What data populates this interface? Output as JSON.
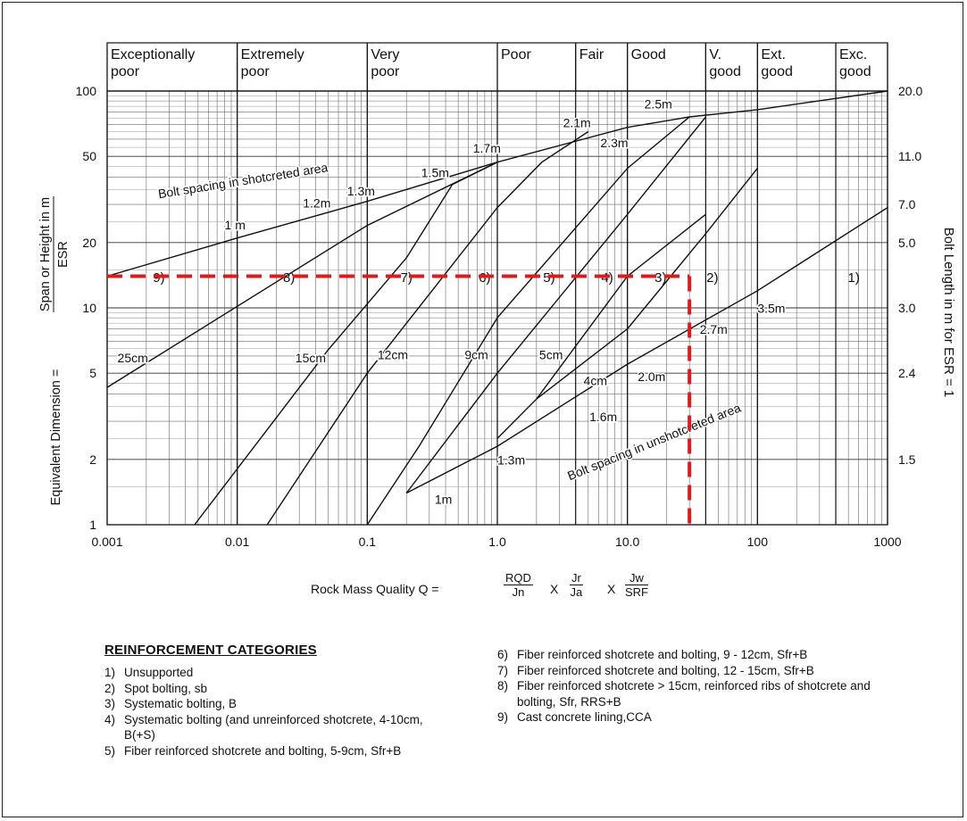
{
  "chart_data": {
    "type": "line",
    "xscale": "log",
    "yscale": "log",
    "xlim": [
      0.001,
      1000
    ],
    "ylim": [
      1,
      100
    ],
    "x_ticks": [
      {
        "value": 0.001,
        "label": "0.001"
      },
      {
        "value": 0.01,
        "label": "0.01"
      },
      {
        "value": 0.1,
        "label": "0.1"
      },
      {
        "value": 1,
        "label": "1.0"
      },
      {
        "value": 10,
        "label": "10.0"
      },
      {
        "value": 100,
        "label": "100"
      },
      {
        "value": 1000,
        "label": "1000"
      }
    ],
    "y_ticks": [
      {
        "value": 1,
        "label": "1"
      },
      {
        "value": 2,
        "label": "2"
      },
      {
        "value": 5,
        "label": "5"
      },
      {
        "value": 10,
        "label": "10"
      },
      {
        "value": 20,
        "label": "20"
      },
      {
        "value": 50,
        "label": "50"
      },
      {
        "value": 100,
        "label": "100"
      }
    ],
    "right_axis_ticks": [
      {
        "at_y": 100,
        "label": "20.0"
      },
      {
        "at_y": 50,
        "label": "11.0"
      },
      {
        "at_y": 30,
        "label": "7.0"
      },
      {
        "at_y": 20,
        "label": "5.0"
      },
      {
        "at_y": 10,
        "label": "3.0"
      },
      {
        "at_y": 5,
        "label": "2.4"
      },
      {
        "at_y": 2,
        "label": "1.5"
      }
    ],
    "ylabel_num": "Span or Height in m",
    "ylabel_den": "ESR",
    "ylabel_lead": "Equivalent Dimension =",
    "right_label": "Bolt Length in m for ESR = 1",
    "x_formula": {
      "lead": "Rock Mass Quality Q =",
      "f1_num": "RQD",
      "f1_den": "Jn",
      "f2_num": "Jr",
      "f2_den": "Ja",
      "f3_num": "Jw",
      "f3_den": "SRF",
      "times": "X"
    },
    "classes": [
      {
        "from": 0.001,
        "to": 0.01,
        "line1": "Exceptionally",
        "line2": "poor"
      },
      {
        "from": 0.01,
        "to": 0.1,
        "line1": "Extremely",
        "line2": "poor"
      },
      {
        "from": 0.1,
        "to": 1,
        "line1": "Very",
        "line2": "poor"
      },
      {
        "from": 1,
        "to": 4,
        "line1": "Poor",
        "line2": ""
      },
      {
        "from": 4,
        "to": 10,
        "line1": "Fair",
        "line2": ""
      },
      {
        "from": 10,
        "to": 40,
        "line1": "Good",
        "line2": ""
      },
      {
        "from": 40,
        "to": 100,
        "line1": "V.",
        "line2": "good"
      },
      {
        "from": 100,
        "to": 400,
        "line1": "Ext.",
        "line2": "good"
      },
      {
        "from": 400,
        "to": 1000,
        "line1": "Exc.",
        "line2": "good"
      }
    ],
    "series": [
      {
        "points": [
          [
            0.001,
            14
          ],
          [
            0.01,
            21
          ],
          [
            0.1,
            31
          ],
          [
            1,
            47
          ],
          [
            10,
            68
          ],
          [
            30,
            76
          ],
          [
            100,
            82
          ],
          [
            1000,
            100
          ]
        ]
      },
      {
        "points": [
          [
            0.2,
            1.4
          ],
          [
            1,
            2.3
          ],
          [
            10,
            5.5
          ],
          [
            100,
            12
          ],
          [
            1000,
            29
          ]
        ]
      },
      {
        "points": [
          [
            0.001,
            4.3
          ],
          [
            0.1,
            24
          ],
          [
            1,
            47
          ]
        ]
      },
      {
        "points": [
          [
            0.0047,
            1
          ],
          [
            0.05,
            6.4
          ],
          [
            0.2,
            17
          ],
          [
            0.45,
            37
          ],
          [
            1,
            47
          ]
        ]
      },
      {
        "points": [
          [
            0.017,
            1
          ],
          [
            0.1,
            5
          ],
          [
            1,
            29
          ],
          [
            2.2,
            47
          ],
          [
            5,
            65
          ]
        ]
      },
      {
        "points": [
          [
            0.1,
            1
          ],
          [
            0.25,
            2.3
          ],
          [
            1,
            9
          ],
          [
            10,
            44
          ],
          [
            30,
            76
          ]
        ]
      },
      {
        "points": [
          [
            0.2,
            1.4
          ],
          [
            1,
            5
          ],
          [
            10,
            27
          ],
          [
            40,
            76
          ]
        ]
      },
      {
        "points": [
          [
            1,
            2.5
          ],
          [
            2,
            3.8
          ],
          [
            10,
            14
          ],
          [
            40,
            27
          ]
        ]
      },
      {
        "points": [
          [
            2,
            3.8
          ],
          [
            10,
            8
          ],
          [
            40,
            22
          ],
          [
            100,
            44
          ]
        ]
      }
    ],
    "zone_labels": [
      {
        "text": "9)",
        "x": 0.0025,
        "y": 13.8
      },
      {
        "text": "8)",
        "x": 0.025,
        "y": 13.8
      },
      {
        "text": "7)",
        "x": 0.2,
        "y": 13.8
      },
      {
        "text": "6)",
        "x": 0.8,
        "y": 13.8
      },
      {
        "text": "5)",
        "x": 2.5,
        "y": 13.8
      },
      {
        "text": "4)",
        "x": 7,
        "y": 13.8
      },
      {
        "text": "3)",
        "x": 18,
        "y": 13.8
      },
      {
        "text": "2)",
        "x": 45,
        "y": 13.8
      },
      {
        "text": "1)",
        "x": 550,
        "y": 13.8
      }
    ],
    "annotations": [
      {
        "text": "Bolt spacing in shotcreted area",
        "x": 0.0025,
        "y": 32,
        "angle": -9
      },
      {
        "text": "Bolt spacing in unshotcreted area",
        "x": 3.6,
        "y": 1.6,
        "angle": -22
      },
      {
        "text": "1 m",
        "x": 0.008,
        "y": 23
      },
      {
        "text": "1.2m",
        "x": 0.032,
        "y": 29
      },
      {
        "text": "1.3m",
        "x": 0.07,
        "y": 33
      },
      {
        "text": "1.5m",
        "x": 0.26,
        "y": 40
      },
      {
        "text": "1.7m",
        "x": 0.65,
        "y": 52
      },
      {
        "text": "2.1m",
        "x": 3.2,
        "y": 68
      },
      {
        "text": "2.5m",
        "x": 13.5,
        "y": 83
      },
      {
        "text": "2.3m",
        "x": 6.2,
        "y": 55
      },
      {
        "text": "25cm",
        "x": 0.0012,
        "y": 5.6
      },
      {
        "text": "15cm",
        "x": 0.028,
        "y": 5.6
      },
      {
        "text": "12cm",
        "x": 0.12,
        "y": 5.8
      },
      {
        "text": "9cm",
        "x": 0.56,
        "y": 5.8
      },
      {
        "text": "5cm",
        "x": 2.1,
        "y": 5.8
      },
      {
        "text": "4cm",
        "x": 4.6,
        "y": 4.4
      },
      {
        "text": "3.5m",
        "x": 100,
        "y": 9.5
      },
      {
        "text": "2.7m",
        "x": 36,
        "y": 7.6
      },
      {
        "text": "2.0m",
        "x": 12,
        "y": 4.6
      },
      {
        "text": "1.6m",
        "x": 5.1,
        "y": 3.0
      },
      {
        "text": "1.3m",
        "x": 1.0,
        "y": 1.9
      },
      {
        "text": "1m",
        "x": 0.33,
        "y": 1.25
      }
    ],
    "highlight": {
      "color": "#e0191b",
      "q": 30,
      "span": 14
    }
  },
  "categories_title": "REINFORCEMENT CATEGORIES",
  "categories_left": [
    {
      "num": "1)",
      "text": "Unsupported"
    },
    {
      "num": "2)",
      "text": "Spot bolting, sb"
    },
    {
      "num": "3)",
      "text": "Systematic bolting, B"
    },
    {
      "num": "4)",
      "text": "Systematic bolting (and unreinforced shotcrete, 4-10cm, B(+S)"
    },
    {
      "num": "5)",
      "text": "Fiber reinforced shotcrete and bolting, 5-9cm, Sfr+B"
    }
  ],
  "categories_right": [
    {
      "num": "6)",
      "text": "Fiber reinforced shotcrete and bolting, 9 - 12cm, Sfr+B"
    },
    {
      "num": "7)",
      "text": "Fiber reinforced shotcrete and bolting, 12 - 15cm, Sfr+B"
    },
    {
      "num": "8)",
      "text": "Fiber reinforced shotcrete > 15cm, reinforced ribs of shotcrete and bolting, Sfr, RRS+B"
    },
    {
      "num": "9)",
      "text": "Cast concrete lining,CCA"
    }
  ]
}
